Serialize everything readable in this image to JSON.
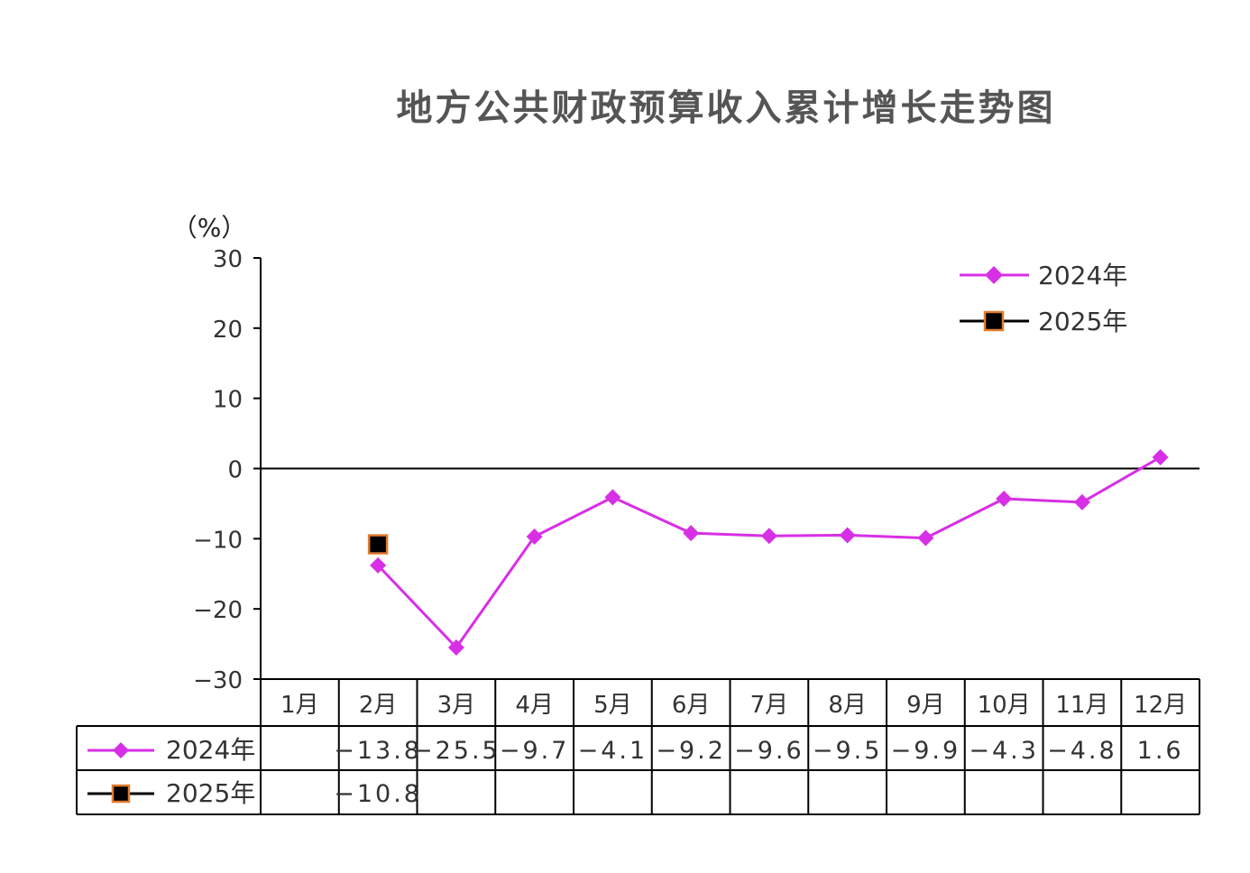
{
  "chart_data": {
    "type": "line",
    "title": "地方公共财政预算收入累计增长走势图",
    "ylabel": "（%）",
    "xlabel": "",
    "categories": [
      "1月",
      "2月",
      "3月",
      "4月",
      "5月",
      "6月",
      "7月",
      "8月",
      "9月",
      "10月",
      "11月",
      "12月"
    ],
    "ylim": [
      -30,
      30
    ],
    "yticks": [
      30,
      20,
      10,
      0,
      -10,
      -20,
      -30
    ],
    "ytick_labels": [
      "30",
      "20",
      "10",
      "0",
      "−10",
      "−20",
      "−30"
    ],
    "legend_position": "top-right",
    "series": [
      {
        "name": "2024年",
        "color": "#d72fe6",
        "marker": "diamond",
        "values": [
          null,
          -13.8,
          -25.5,
          -9.7,
          -4.1,
          -9.2,
          -9.6,
          -9.5,
          -9.9,
          -4.3,
          -4.8,
          1.6
        ],
        "table_values": [
          "",
          "−13.8",
          "−25.5",
          "−9.7",
          "−4.1",
          "−9.2",
          "−9.6",
          "−9.5",
          "−9.9",
          "−4.3",
          "−4.8",
          "1.6"
        ]
      },
      {
        "name": "2025年",
        "color": "#000000",
        "marker": "square",
        "marker_edge_color": "#e07b30",
        "values": [
          null,
          -10.8,
          null,
          null,
          null,
          null,
          null,
          null,
          null,
          null,
          null,
          null
        ],
        "table_values": [
          "",
          "−10.8",
          "",
          "",
          "",
          "",
          "",
          "",
          "",
          "",
          "",
          ""
        ]
      }
    ]
  }
}
